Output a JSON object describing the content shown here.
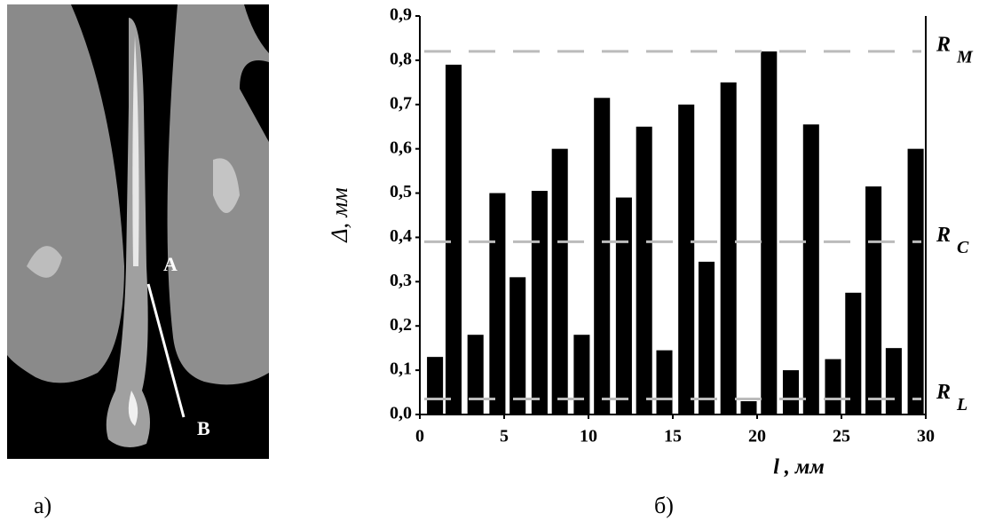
{
  "image_panel": {
    "labels": [
      "A",
      "B"
    ],
    "caption": "а)"
  },
  "chart_data": {
    "type": "bar",
    "caption": "б)",
    "x_label": "l , мм",
    "y_label": "Δ, мм",
    "x": [
      0.9,
      2.0,
      3.3,
      4.6,
      5.8,
      7.1,
      8.3,
      9.6,
      10.8,
      12.1,
      13.3,
      14.5,
      15.8,
      17.0,
      18.3,
      19.5,
      20.7,
      22.0,
      23.2,
      24.5,
      25.7,
      26.9,
      28.1,
      29.4
    ],
    "values": [
      0.13,
      0.79,
      0.18,
      0.5,
      0.31,
      0.505,
      0.6,
      0.18,
      0.715,
      0.49,
      0.65,
      0.145,
      0.7,
      0.345,
      0.75,
      0.03,
      0.82,
      0.1,
      0.655,
      0.125,
      0.275,
      0.515,
      0.15,
      0.6
    ],
    "color": "#000000",
    "xlim": [
      0,
      30
    ],
    "xticks": [
      0,
      5,
      10,
      15,
      20,
      25,
      30
    ],
    "ylim": [
      0,
      0.9
    ],
    "yticks": [
      {
        "value": 0,
        "label": "0,0"
      },
      {
        "value": 0.1,
        "label": "0,1"
      },
      {
        "value": 0.2,
        "label": "0,2"
      },
      {
        "value": 0.3,
        "label": "0,3"
      },
      {
        "value": 0.4,
        "label": "0,4"
      },
      {
        "value": 0.5,
        "label": "0,5"
      },
      {
        "value": 0.6,
        "label": "0,6"
      },
      {
        "value": 0.7,
        "label": "0,7"
      },
      {
        "value": 0.8,
        "label": "0,8"
      },
      {
        "value": 0.9,
        "label": "0,9"
      }
    ],
    "reference_lines": [
      {
        "label": "R",
        "subscript": "M",
        "value": 0.82,
        "color": "#bbbbbb"
      },
      {
        "label": "R",
        "subscript": "C",
        "value": 0.39,
        "color": "#bbbbbb"
      },
      {
        "label": "R",
        "subscript": "L",
        "value": 0.035,
        "color": "#bbbbbb"
      }
    ]
  }
}
